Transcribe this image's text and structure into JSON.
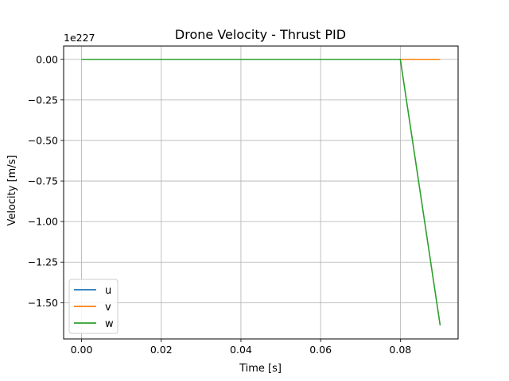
{
  "chart_data": {
    "type": "line",
    "title": "Drone Velocity - Thrust PID",
    "xlabel": "Time [s]",
    "ylabel": "Velocity [m/s]",
    "y_offset_label": "1e227",
    "xlim": [
      -0.0045,
      0.0945
    ],
    "ylim": [
      -1.7235,
      0.082
    ],
    "x_ticks": [
      0.0,
      0.02,
      0.04,
      0.06,
      0.08
    ],
    "x_tick_labels": [
      "0.00",
      "0.02",
      "0.04",
      "0.06",
      "0.08"
    ],
    "y_ticks": [
      0.0,
      -0.25,
      -0.5,
      -0.75,
      -1.0,
      -1.25,
      -1.5
    ],
    "y_tick_labels": [
      "0.00",
      "−0.25",
      "−0.50",
      "−0.75",
      "−1.00",
      "−1.25",
      "−1.50"
    ],
    "grid": true,
    "legend_position": "lower left",
    "x": [
      0.0,
      0.01,
      0.02,
      0.03,
      0.04,
      0.05,
      0.06,
      0.07,
      0.08,
      0.09
    ],
    "series": [
      {
        "name": "u",
        "color": "#1f77b4",
        "values": [
          0,
          0,
          0,
          0,
          0,
          0,
          0,
          0,
          0,
          0
        ]
      },
      {
        "name": "v",
        "color": "#ff7f0e",
        "values": [
          0,
          0,
          0,
          0,
          0,
          0,
          0,
          0,
          0,
          0
        ]
      },
      {
        "name": "w",
        "color": "#2ca02c",
        "values": [
          0,
          0,
          0,
          0,
          0,
          0,
          0,
          0,
          0,
          -1.64
        ]
      }
    ]
  }
}
